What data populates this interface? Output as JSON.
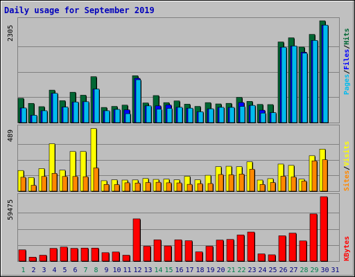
{
  "title": "Daily usage for September 2019",
  "colors": {
    "frame_bg": "#c0c0c0",
    "plot_bg": "#bebebe",
    "title": "#0000bb",
    "hits": "#006633",
    "files": "#0000ff",
    "pages": "#00bbee",
    "visits": "#ffff00",
    "sites": "#ff8800",
    "kbytes": "#ff0000",
    "weekend_day": "#00804d",
    "weekday": "#000080"
  },
  "chart_data": [
    {
      "type": "bar",
      "title": "Daily usage for September 2019",
      "ylabel_parts": [
        "Pages",
        "Files",
        "Hits"
      ],
      "ymax_label": "2305",
      "ylim": [
        0,
        2305
      ],
      "categories": [
        "1",
        "2",
        "3",
        "4",
        "5",
        "6",
        "7",
        "8",
        "9",
        "10",
        "11",
        "12",
        "13",
        "14",
        "15",
        "16",
        "17",
        "18",
        "19",
        "20",
        "21",
        "22",
        "23",
        "24",
        "25",
        "26",
        "27",
        "28",
        "29",
        "30",
        "31"
      ],
      "series": [
        {
          "name": "Hits",
          "values": [
            551,
            435,
            361,
            735,
            496,
            687,
            620,
            1040,
            343,
            367,
            396,
            1061,
            445,
            612,
            452,
            491,
            417,
            367,
            452,
            423,
            436,
            571,
            480,
            412,
            408,
            1826,
            1920,
            1710,
            1997,
            2305,
            0
          ]
        },
        {
          "name": "Files",
          "values": [
            330,
            166,
            268,
            663,
            351,
            466,
            473,
            760,
            268,
            298,
            289,
            1003,
            379,
            379,
            399,
            346,
            326,
            245,
            312,
            345,
            344,
            454,
            389,
            280,
            225,
            1707,
            1734,
            1594,
            1860,
            2207,
            0
          ]
        },
        {
          "name": "Pages",
          "values": [
            330,
            166,
            268,
            663,
            351,
            466,
            473,
            760,
            268,
            298,
            202,
            971,
            379,
            303,
            322,
            346,
            326,
            245,
            312,
            345,
            344,
            366,
            389,
            215,
            225,
            1707,
            1734,
            1572,
            1860,
            2207,
            0
          ]
        }
      ]
    },
    {
      "type": "bar",
      "ylabel_parts": [
        "Sites",
        "Visits"
      ],
      "ymax_label": "489",
      "ylim": [
        0,
        489
      ],
      "categories": [
        "1",
        "2",
        "3",
        "4",
        "5",
        "6",
        "7",
        "8",
        "9",
        "10",
        "11",
        "12",
        "13",
        "14",
        "15",
        "16",
        "17",
        "18",
        "19",
        "20",
        "21",
        "22",
        "23",
        "24",
        "25",
        "26",
        "27",
        "28",
        "29",
        "30",
        "31"
      ],
      "series": [
        {
          "name": "Visits",
          "values": [
            160,
            106,
            175,
            368,
            163,
            308,
            308,
            486,
            81,
            88,
            86,
            87,
            98,
            91,
            93,
            88,
            115,
            88,
            123,
            190,
            193,
            190,
            228,
            86,
            97,
            210,
            200,
            93,
            275,
            326,
            0
          ]
        },
        {
          "name": "Sites",
          "values": [
            108,
            45,
            114,
            138,
            114,
            114,
            112,
            180,
            52,
            51,
            65,
            63,
            67,
            69,
            65,
            64,
            53,
            58,
            59,
            129,
            127,
            132,
            170,
            52,
            67,
            116,
            110,
            78,
            235,
            244,
            0
          ]
        }
      ]
    },
    {
      "type": "bar",
      "ylabel_parts": [
        "KBytes"
      ],
      "ymax_label": "59475",
      "ylim": [
        0,
        59475
      ],
      "categories": [
        "1",
        "2",
        "3",
        "4",
        "5",
        "6",
        "7",
        "8",
        "9",
        "10",
        "11",
        "12",
        "13",
        "14",
        "15",
        "16",
        "17",
        "18",
        "19",
        "20",
        "21",
        "22",
        "23",
        "24",
        "25",
        "26",
        "27",
        "28",
        "29",
        "30",
        "31"
      ],
      "series": [
        {
          "name": "KBytes",
          "values": [
            10408,
            3627,
            5424,
            11763,
            13012,
            11763,
            12001,
            11990,
            7791,
            8411,
            5442,
            39029,
            13750,
            19659,
            13987,
            19658,
            18837,
            8542,
            13750,
            19422,
            20000,
            24165,
            26832,
            6667,
            5810,
            23375,
            25833,
            18672,
            43582,
            59475,
            0
          ]
        }
      ]
    }
  ],
  "weekend_days": [
    1,
    7,
    8,
    14,
    15,
    21,
    22,
    28,
    29
  ]
}
